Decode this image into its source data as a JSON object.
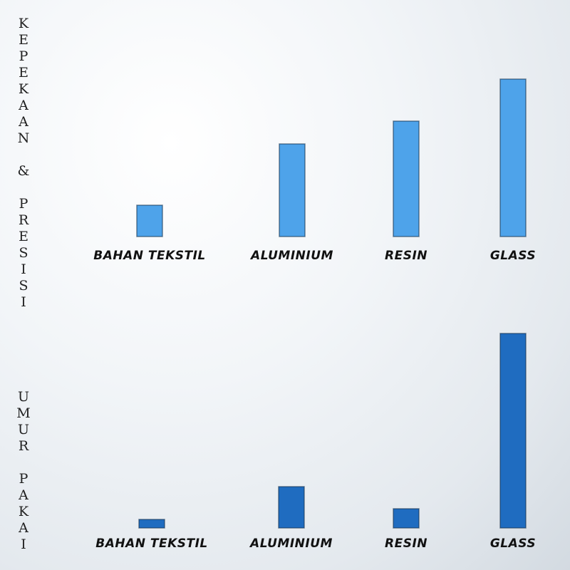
{
  "chart_data": [
    {
      "type": "bar",
      "y_label": "KEPEKAAN & PRESISI",
      "categories": [
        "BAHAN TEKSTIL",
        "ALUMINIUM",
        "RESIN",
        "GLASS"
      ],
      "values": [
        44,
        130,
        162,
        221
      ],
      "color": "#4ea3ea"
    },
    {
      "type": "bar",
      "y_label": "UMUR PAKAI",
      "categories": [
        "BAHAN TEKSTIL",
        "ALUMINIUM",
        "RESIN",
        "GLASS"
      ],
      "values": [
        12,
        58,
        27,
        273
      ],
      "color": "#1f6cc0"
    }
  ]
}
